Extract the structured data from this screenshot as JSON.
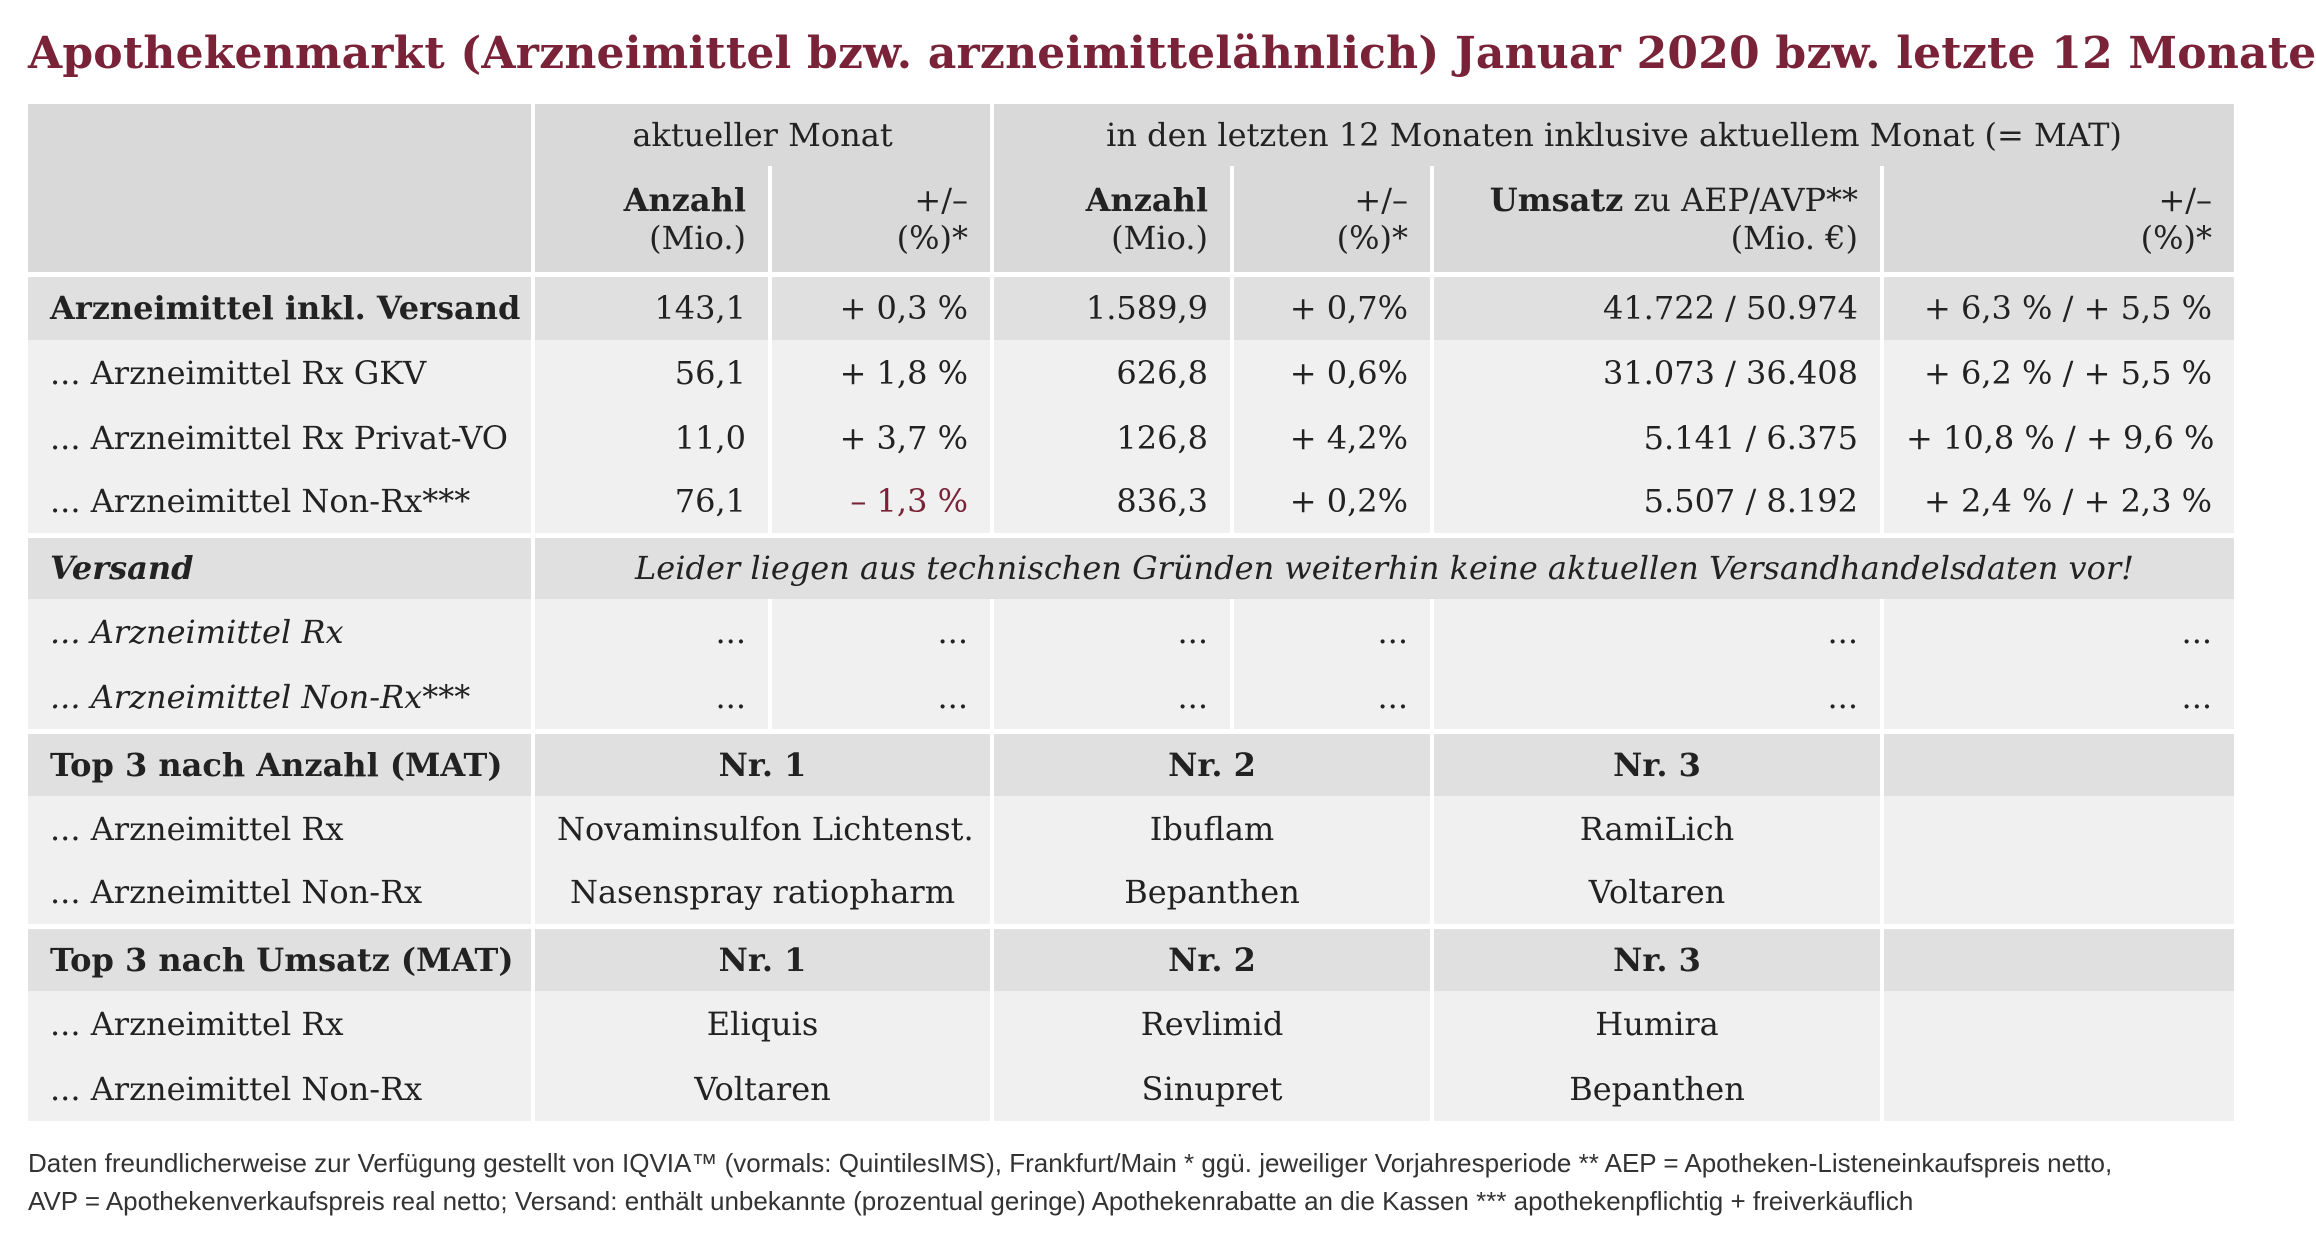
{
  "title": "Apothekenmarkt (Arzneimittel bzw. arzneimittelähnlich) Januar 2020 bzw. letzte 12 Monate",
  "header": {
    "group_current": "aktueller Monat",
    "group_mat": "in den letzten 12 Monaten inklusive aktuellem Monat (= MAT)",
    "anzahl": "Anzahl",
    "mio": "(Mio.)",
    "plusminus": "+/–",
    "pct_star": "(%)*",
    "umsatz_bold": "Umsatz",
    "umsatz_rest": " zu AEP/AVP**",
    "mio_eur": "(Mio. €)"
  },
  "rows": [
    {
      "label": "Arzneimittel inkl. Versand",
      "a_cur": "143,1",
      "p_cur": "+ 0,3 %",
      "a_mat": "1.589,9",
      "p_mat": "+ 0,7%",
      "umsatz": "41.722 / 50.974",
      "p_umsatz": "+ 6,3 % / + 5,5 %"
    },
    {
      "label": "... Arzneimittel Rx GKV",
      "a_cur": "56,1",
      "p_cur": "+ 1,8 %",
      "a_mat": "626,8",
      "p_mat": "+ 0,6%",
      "umsatz": "31.073 / 36.408",
      "p_umsatz": "+ 6,2 % / + 5,5 %"
    },
    {
      "label": "... Arzneimittel Rx Privat-VO",
      "a_cur": "11,0",
      "p_cur": "+ 3,7 %",
      "a_mat": "126,8",
      "p_mat": "+ 4,2%",
      "umsatz": "5.141 / 6.375",
      "p_umsatz": "+ 10,8 % / + 9,6 %"
    },
    {
      "label": "... Arzneimittel Non-Rx***",
      "a_cur": "76,1",
      "p_cur": "– 1,3 %",
      "a_mat": "836,3",
      "p_mat": "+ 0,2%",
      "umsatz": "5.507 / 8.192",
      "p_umsatz": "+ 2,4 % / + 2,3 %"
    }
  ],
  "versand": {
    "label": "Versand",
    "note": "Leider liegen aus technischen Gründen weiterhin keine aktuellen Versandhandelsdaten vor!",
    "rows": [
      {
        "label": "... Arzneimittel Rx",
        "v": "..."
      },
      {
        "label": "... Arzneimittel Non-Rx***",
        "v": "..."
      }
    ]
  },
  "top_anzahl": {
    "label": "Top 3 nach Anzahl (MAT)",
    "nr1": "Nr. 1",
    "nr2": "Nr. 2",
    "nr3": "Nr. 3",
    "rows": [
      {
        "label": "... Arzneimittel Rx",
        "n1": "Novaminsulfon Lichtenst.",
        "n2": "Ibuflam",
        "n3": "RamiLich"
      },
      {
        "label": "... Arzneimittel Non-Rx",
        "n1": "Nasenspray ratiopharm",
        "n2": "Bepanthen",
        "n3": "Voltaren"
      }
    ]
  },
  "top_umsatz": {
    "label": "Top 3 nach Umsatz (MAT)",
    "nr1": "Nr. 1",
    "nr2": "Nr. 2",
    "nr3": "Nr. 3",
    "rows": [
      {
        "label": "... Arzneimittel Rx",
        "n1": "Eliquis",
        "n2": "Revlimid",
        "n3": "Humira"
      },
      {
        "label": "... Arzneimittel Non-Rx",
        "n1": "Voltaren",
        "n2": "Sinupret",
        "n3": "Bepanthen"
      }
    ]
  },
  "footer": {
    "line1": "Daten freundlicherweise zur Verfügung gestellt von IQVIA™ (vormals: QuintilesIMS), Frankfurt/Main   * ggü. jeweiliger Vorjahresperiode   ** AEP = Apotheken-Listeneinkaufspreis netto,",
    "line2": "AVP = Apothekenverkaufspreis real netto; Versand: enthält unbekannte (prozentual geringe) Apothekenrabatte an die Kassen    *** apothekenpflichtig + freiverkäuflich"
  }
}
